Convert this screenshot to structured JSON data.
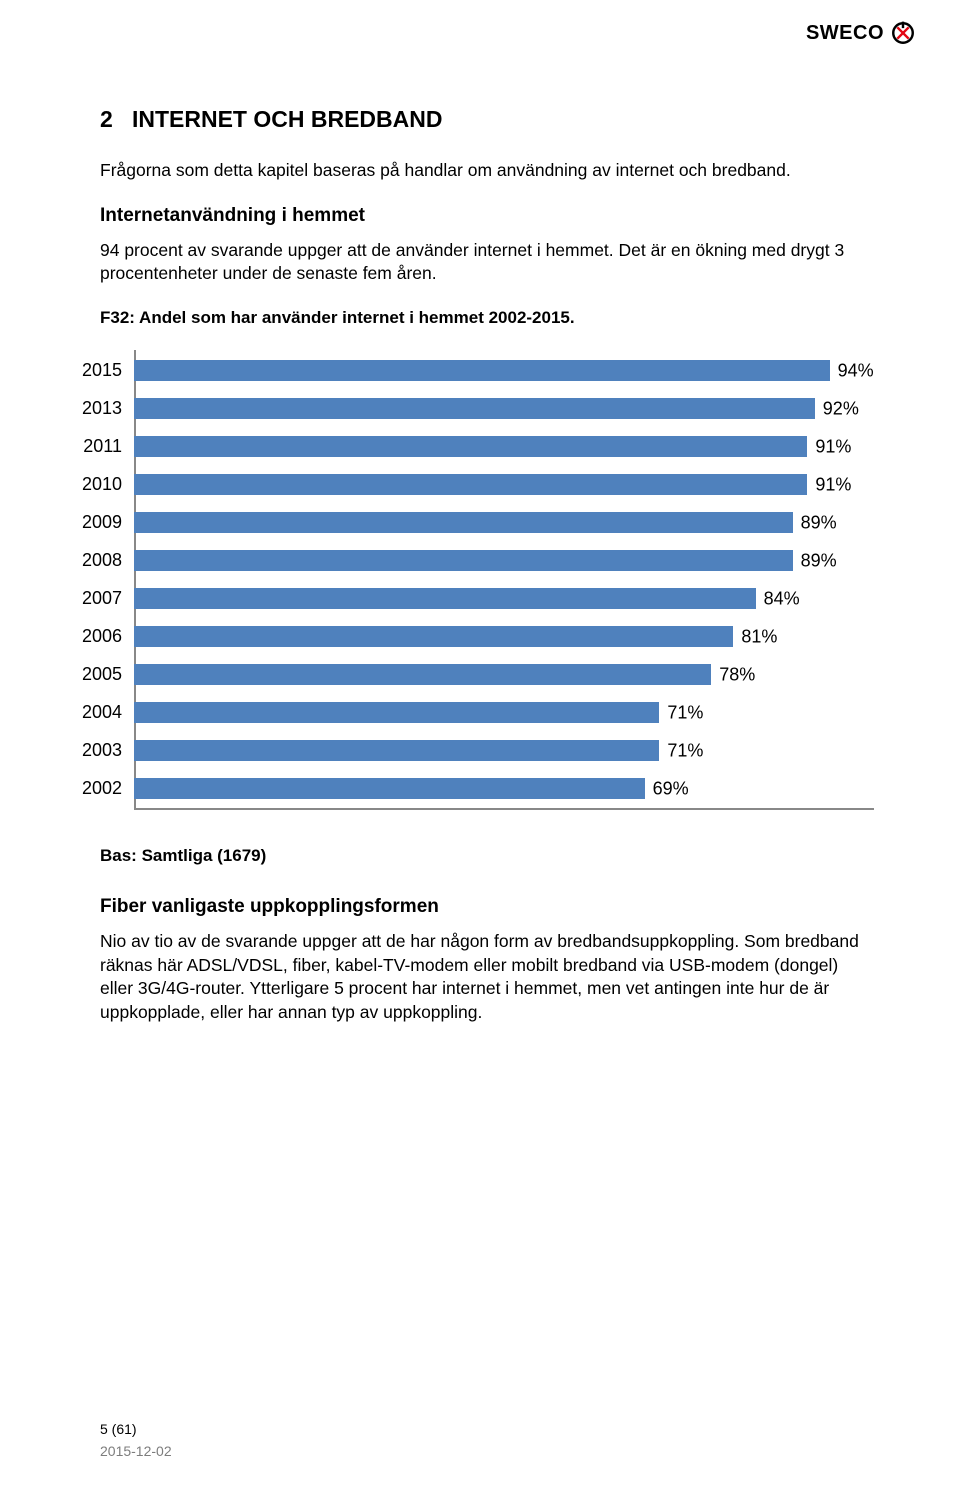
{
  "logo": {
    "text": "SWECO"
  },
  "section": {
    "number": "2",
    "title": "INTERNET OCH BREDBAND",
    "intro": "Frågorna som detta kapitel baseras på handlar om användning av internet och bredband."
  },
  "block1": {
    "heading": "Internetanvändning i hemmet",
    "para": "94 procent av svarande uppger att de använder internet i hemmet. Det är en ökning med drygt 3 procentenheter under de senaste fem åren.",
    "caption": "F32: Andel som har använder internet i hemmet 2002-2015."
  },
  "chart": {
    "type": "bar-horizontal",
    "bar_color": "#4f81bd",
    "label_color": "#000000",
    "axis_color": "#888888",
    "font_size_pt": 18,
    "max_value": 100,
    "rows": [
      {
        "year": "2015",
        "value": 94,
        "label": "94%"
      },
      {
        "year": "2013",
        "value": 92,
        "label": "92%"
      },
      {
        "year": "2011",
        "value": 91,
        "label": "91%"
      },
      {
        "year": "2010",
        "value": 91,
        "label": "91%"
      },
      {
        "year": "2009",
        "value": 89,
        "label": "89%"
      },
      {
        "year": "2008",
        "value": 89,
        "label": "89%"
      },
      {
        "year": "2007",
        "value": 84,
        "label": "84%"
      },
      {
        "year": "2006",
        "value": 81,
        "label": "81%"
      },
      {
        "year": "2005",
        "value": 78,
        "label": "78%"
      },
      {
        "year": "2004",
        "value": 71,
        "label": "71%"
      },
      {
        "year": "2003",
        "value": 71,
        "label": "71%"
      },
      {
        "year": "2002",
        "value": 69,
        "label": "69%"
      }
    ]
  },
  "bas": "Bas: Samtliga (1679)",
  "block2": {
    "heading": "Fiber vanligaste uppkopplingsformen",
    "para": "Nio av tio av de svarande uppger att de har någon form av bredbandsuppkoppling. Som bredband räknas här ADSL/VDSL, fiber, kabel-TV-modem eller mobilt bredband via USB-modem (dongel) eller 3G/4G-router. Ytterligare 5 procent har internet i hemmet, men vet antingen inte hur de är uppkopplade, eller har annan typ av uppkoppling."
  },
  "footer": {
    "page": "5 (61)",
    "date": "2015-12-02"
  }
}
